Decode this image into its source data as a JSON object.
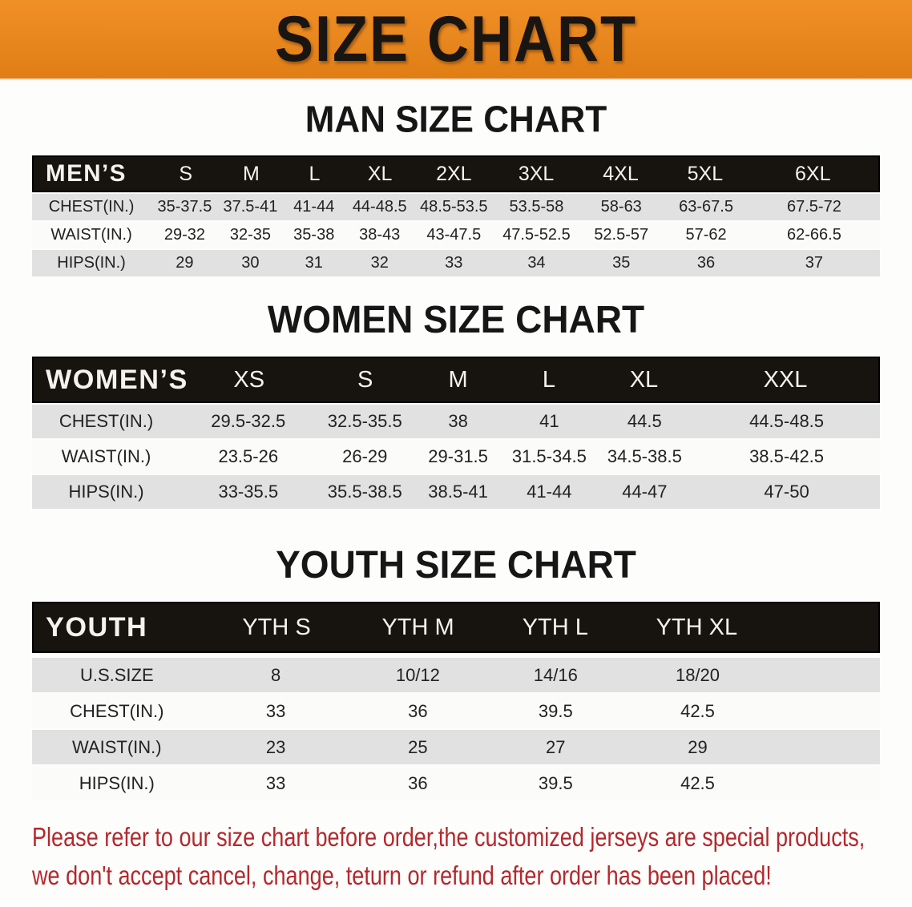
{
  "banner": {
    "title": "SIZE CHART",
    "bg_color": "#E8861E",
    "text_color": "#181512"
  },
  "sections": [
    {
      "id": "men",
      "title": "MAN SIZE CHART",
      "header_label": "MEN’S",
      "columns": [
        "S",
        "M",
        "L",
        "XL",
        "2XL",
        "3XL",
        "4XL",
        "5XL",
        "6XL"
      ],
      "rows": [
        {
          "label": "CHEST(IN.)",
          "values": [
            "35-37.5",
            "37.5-41",
            "41-44",
            "44-48.5",
            "48.5-53.5",
            "53.5-58",
            "58-63",
            "63-67.5",
            "67.5-72"
          ]
        },
        {
          "label": "WAIST(IN.)",
          "values": [
            "29-32",
            "32-35",
            "35-38",
            "38-43",
            "43-47.5",
            "47.5-52.5",
            "52.5-57",
            "57-62",
            "62-66.5"
          ]
        },
        {
          "label": "HIPS(IN.)",
          "values": [
            "29",
            "30",
            "31",
            "32",
            "33",
            "34",
            "35",
            "36",
            "37"
          ]
        }
      ]
    },
    {
      "id": "women",
      "title": "WOMEN SIZE CHART",
      "header_label": "WOMEN’S",
      "columns": [
        "XS",
        "S",
        "M",
        "L",
        "XL",
        "XXL"
      ],
      "rows": [
        {
          "label": "CHEST(IN.)",
          "values": [
            "29.5-32.5",
            "32.5-35.5",
            "38",
            "41",
            "44.5",
            "44.5-48.5"
          ]
        },
        {
          "label": "WAIST(IN.)",
          "values": [
            "23.5-26",
            "26-29",
            "29-31.5",
            "31.5-34.5",
            "34.5-38.5",
            "38.5-42.5"
          ]
        },
        {
          "label": "HIPS(IN.)",
          "values": [
            "33-35.5",
            "35.5-38.5",
            "38.5-41",
            "41-44",
            "44-47",
            "47-50"
          ]
        }
      ]
    },
    {
      "id": "youth",
      "title": "YOUTH SIZE CHART",
      "header_label": "YOUTH",
      "columns": [
        "YTH S",
        "YTH M",
        "YTH L",
        "YTH XL"
      ],
      "rows": [
        {
          "label": "U.S.SIZE",
          "values": [
            "8",
            "10/12",
            "14/16",
            "18/20"
          ]
        },
        {
          "label": "CHEST(IN.)",
          "values": [
            "33",
            "36",
            "39.5",
            "42.5"
          ]
        },
        {
          "label": "WAIST(IN.)",
          "values": [
            "23",
            "25",
            "27",
            "29"
          ]
        },
        {
          "label": "HIPS(IN.)",
          "values": [
            "33",
            "36",
            "39.5",
            "42.5"
          ]
        }
      ]
    }
  ],
  "disclaimer": {
    "line1": "Please refer to our size chart before order,the customized jerseys are special products,",
    "line2": "we don't accept cancel, change, teturn or refund after order has been placed!",
    "color": "#B4282C"
  },
  "colors": {
    "banner_orange": "#E8861E",
    "header_bar_black": "#17130F",
    "header_bar_text": "#F4F2EC",
    "row_gray": "#E1E1E1",
    "row_white": "#FBFBFA",
    "body_text": "#222222",
    "disclaimer_red": "#B4282C"
  }
}
